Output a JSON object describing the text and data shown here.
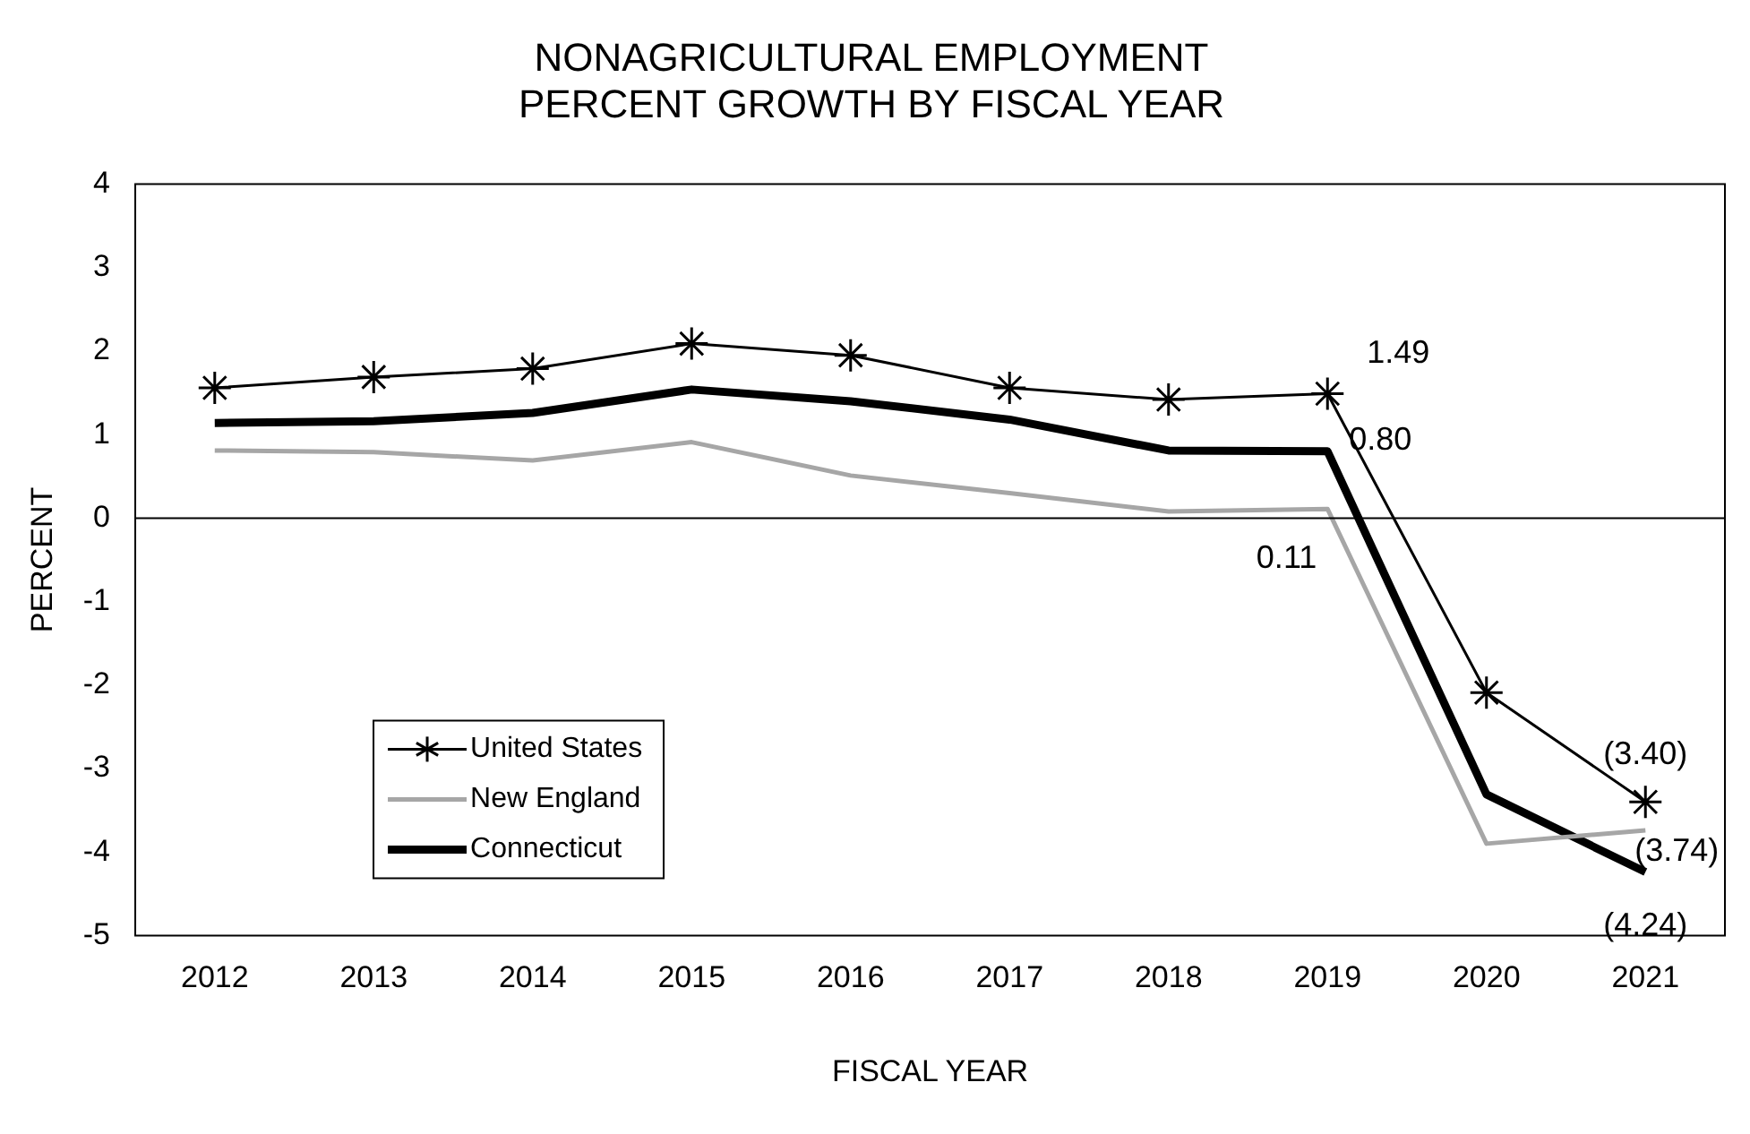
{
  "chart_data": {
    "type": "line",
    "title": "NONAGRICULTURAL EMPLOYMENT\nPERCENT GROWTH BY FISCAL YEAR",
    "xlabel": "FISCAL YEAR",
    "ylabel": "PERCENT",
    "categories": [
      "2012",
      "2013",
      "2014",
      "2015",
      "2016",
      "2017",
      "2018",
      "2019",
      "2020",
      "2021"
    ],
    "series": [
      {
        "name": "United States",
        "color": "#000000",
        "marker": "cross",
        "values": [
          1.56,
          1.69,
          1.79,
          2.09,
          1.95,
          1.56,
          1.42,
          1.49,
          -2.09,
          -3.4
        ],
        "value_labels": [
          null,
          null,
          null,
          null,
          null,
          null,
          null,
          "1.49",
          null,
          "(3.40)"
        ]
      },
      {
        "name": "New England",
        "color": "#a6a6a6",
        "values": [
          0.81,
          0.79,
          0.69,
          0.91,
          0.51,
          0.3,
          0.08,
          0.11,
          -3.9,
          -3.74
        ],
        "value_labels": [
          null,
          null,
          null,
          null,
          null,
          null,
          null,
          "0.11",
          null,
          "(3.74)"
        ]
      },
      {
        "name": "Connecticut",
        "color": "#000000",
        "values": [
          1.14,
          1.16,
          1.26,
          1.54,
          1.4,
          1.18,
          0.81,
          0.8,
          -3.31,
          -4.24
        ],
        "value_labels": [
          null,
          null,
          null,
          null,
          null,
          null,
          null,
          "0.80",
          null,
          "(4.24)"
        ]
      }
    ],
    "ylim": [
      -5,
      4
    ],
    "yticks": [
      -5,
      -4,
      -3,
      -2,
      -1,
      0,
      1,
      2,
      3,
      4
    ],
    "grid": false,
    "ref_lines": [
      {
        "axis": "y",
        "value": 0,
        "color": "#000000"
      }
    ],
    "legend": "bottom left",
    "marker": "none",
    "line_style": "solid"
  }
}
